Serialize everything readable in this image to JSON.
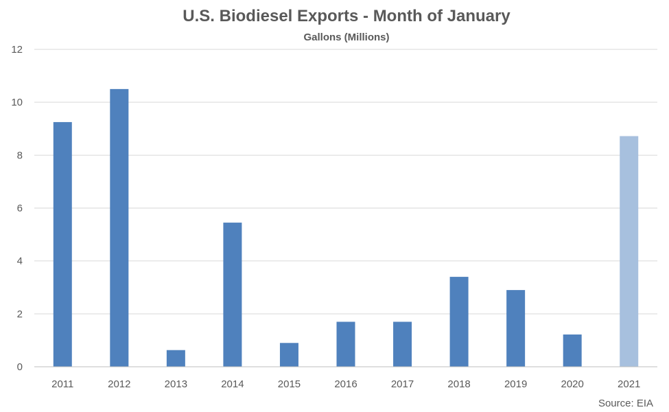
{
  "chart_data": {
    "type": "bar",
    "title": "U.S. Biodiesel Exports - Month of January",
    "subtitle": "Gallons (Millions)",
    "xlabel": "",
    "ylabel": "",
    "categories": [
      "2011",
      "2012",
      "2013",
      "2014",
      "2015",
      "2016",
      "2017",
      "2018",
      "2019",
      "2020",
      "2021"
    ],
    "values": [
      9.25,
      10.5,
      0.63,
      5.45,
      0.9,
      1.7,
      1.7,
      3.4,
      2.9,
      1.22,
      8.72
    ],
    "ylim": [
      0,
      12
    ],
    "yticks": [
      "0",
      "2",
      "4",
      "6",
      "8",
      "10",
      "12"
    ],
    "grid": true,
    "legend": "none",
    "colors": {
      "bar": "#4f81bd",
      "highlight_bar": "#a7c0de",
      "gridline": "#d9d9d9",
      "text": "#595959"
    },
    "highlight_index": 10,
    "source": "Source: EIA"
  }
}
